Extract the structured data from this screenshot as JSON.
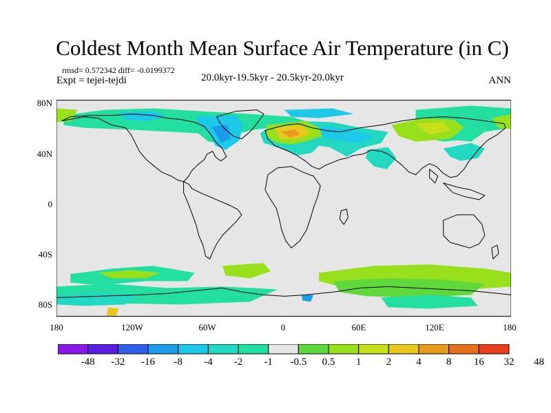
{
  "title": "Coldest Month Mean Surface Air Temperature (in C)",
  "stats_line": "rmsd= 0.572342 diff= -0.0199372",
  "experiment": "Expt = tejei-tejdi",
  "period": "20.0kyr-19.5kyr - 20.5kyr-20.0kyr",
  "season": "ANN",
  "lat_labels": [
    "80N",
    "40N",
    "0",
    "40S",
    "80S"
  ],
  "lon_labels": [
    "180",
    "120W",
    "60W",
    "0",
    "60E",
    "120E",
    "180"
  ],
  "colorbar": {
    "colors": [
      "#8a16e8",
      "#5a1ee0",
      "#2f5fe8",
      "#1a9ce8",
      "#1ec8e8",
      "#22d8c0",
      "#22dea0",
      "#e6e6e6",
      "#5ed83a",
      "#98e01c",
      "#c8e01c",
      "#e8c81c",
      "#e89c1c",
      "#e8701c",
      "#e8401c"
    ],
    "labels": [
      "-48",
      "-32",
      "-16",
      "-8",
      "-4",
      "-2",
      "-1",
      "-0.5",
      "0.5",
      "1",
      "2",
      "4",
      "8",
      "16",
      "32",
      "48"
    ]
  }
}
